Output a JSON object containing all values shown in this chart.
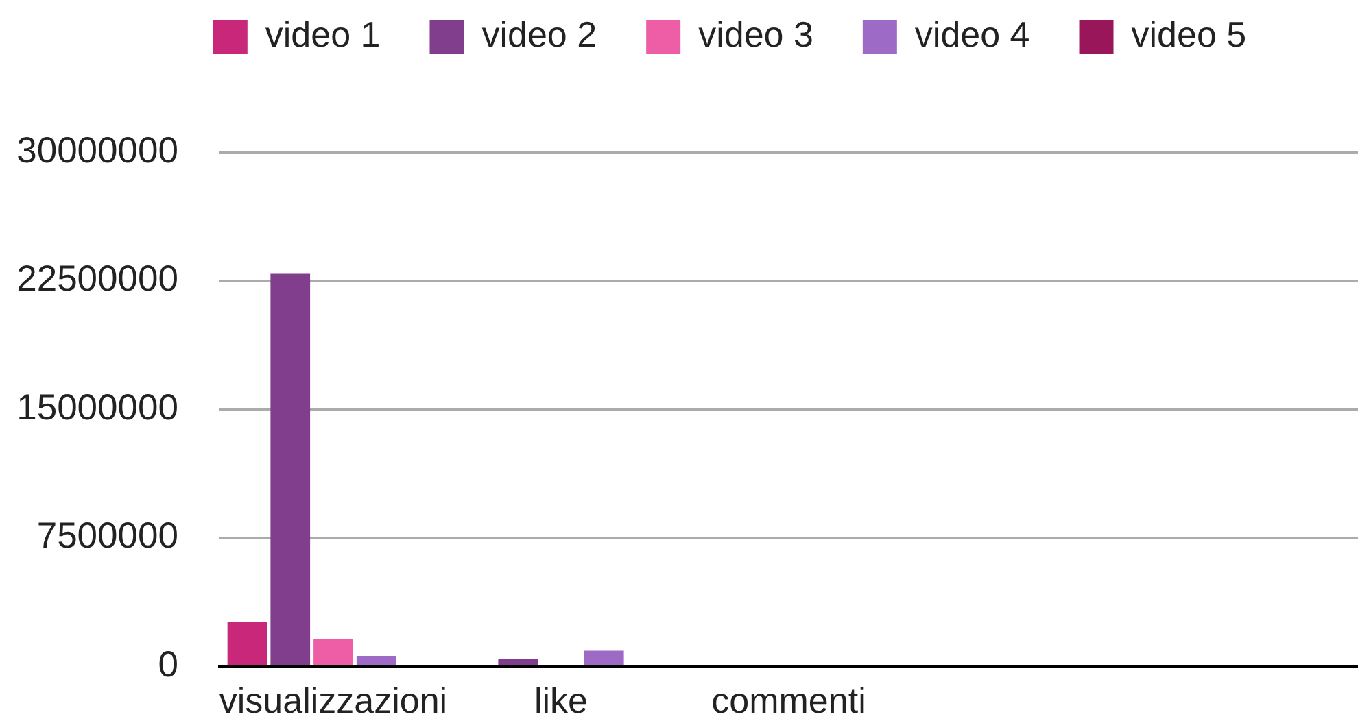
{
  "chart_data": {
    "type": "bar",
    "categories": [
      "visualizzazioni",
      "like",
      "commenti",
      null,
      null
    ],
    "series": [
      {
        "name": "video 1",
        "color": "#c9287a",
        "values": [
          2600000,
          0,
          0,
          null,
          null
        ]
      },
      {
        "name": "video 2",
        "color": "#803e8c",
        "values": [
          22900000,
          400000,
          0,
          null,
          null
        ]
      },
      {
        "name": "video 3",
        "color": "#ee5ea6",
        "values": [
          1600000,
          0,
          0,
          null,
          null
        ]
      },
      {
        "name": "video 4",
        "color": "#9d6ac6",
        "values": [
          600000,
          900000,
          0,
          null,
          null
        ]
      },
      {
        "name": "video 5",
        "color": "#99165a",
        "values": [
          0,
          0,
          0,
          null,
          null
        ]
      }
    ],
    "ylim": [
      0,
      30000000
    ],
    "yticks": [
      0,
      7500000,
      15000000,
      22500000,
      30000000
    ],
    "grid": "y",
    "legend": "top"
  }
}
